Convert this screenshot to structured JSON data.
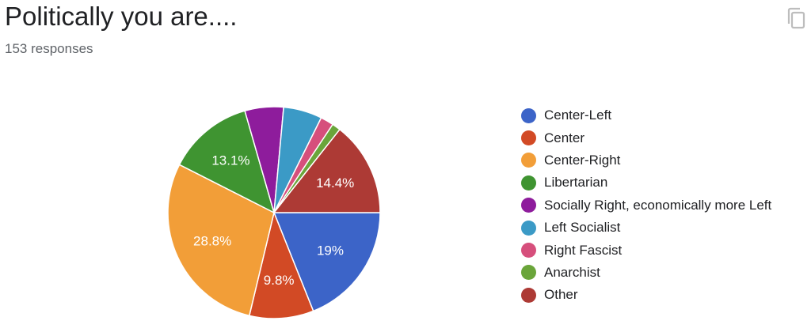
{
  "header": {
    "title": "Politically you are....",
    "responses": "153 responses"
  },
  "icons": {
    "copy": "copy-icon"
  },
  "chart_data": {
    "type": "pie",
    "legend_position": "right",
    "slices": [
      {
        "name": "Center-Left",
        "value": 19.0,
        "label": "19%",
        "color": "#3c64c8"
      },
      {
        "name": "Center",
        "value": 9.8,
        "label": "9.8%",
        "color": "#d24a25"
      },
      {
        "name": "Center-Right",
        "value": 28.8,
        "label": "28.8%",
        "color": "#f29e38"
      },
      {
        "name": "Libertarian",
        "value": 13.1,
        "label": "13.1%",
        "color": "#3f9431"
      },
      {
        "name": "Socially Right, economically more Left",
        "value": 5.9,
        "label": "",
        "color": "#8e1c9c"
      },
      {
        "name": "Left Socialist",
        "value": 5.9,
        "label": "",
        "color": "#3b9ac6"
      },
      {
        "name": "Right Fascist",
        "value": 2.0,
        "label": "",
        "color": "#d64f7c"
      },
      {
        "name": "Anarchist",
        "value": 1.3,
        "label": "",
        "color": "#6aa53a"
      },
      {
        "name": "Other",
        "value": 14.4,
        "label": "14.4%",
        "color": "#ad3a35"
      }
    ]
  }
}
